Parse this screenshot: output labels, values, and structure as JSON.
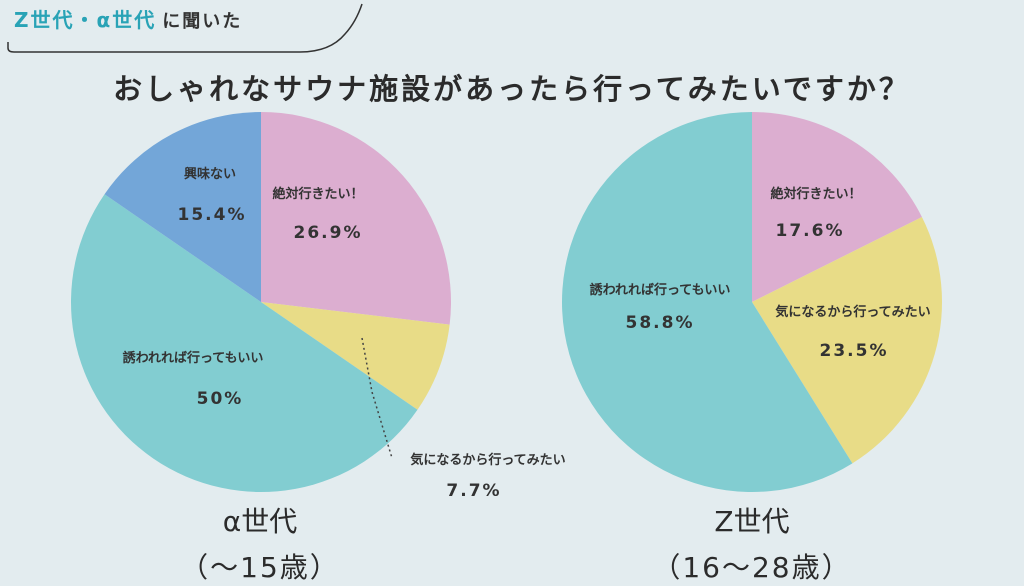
{
  "header": {
    "tag_accent": "Z世代・α世代",
    "tag_plain": "に聞いた",
    "title": "おしゃれなサウナ施設があったら行ってみたいですか？"
  },
  "colors": {
    "pink": "#dcaed0",
    "yellow": "#e8dc87",
    "teal": "#82cdd1",
    "blue": "#73a6d8",
    "accent": "#29a3b6"
  },
  "chart_data": [
    {
      "type": "pie",
      "caption": "α世代",
      "subcaption": "（〜15歳）",
      "slices": [
        {
          "label": "絶対行きたい！",
          "pct_text": "26.9%",
          "value": 26.9,
          "color": "#dcaed0"
        },
        {
          "label": "気になるから行ってみたい",
          "pct_text": "7.7%",
          "value": 7.7,
          "color": "#e8dc87"
        },
        {
          "label": "誘われれば行ってもいい",
          "pct_text": "50%",
          "value": 50,
          "color": "#82cdd1"
        },
        {
          "label": "興味ない",
          "pct_text": "15.4%",
          "value": 15.4,
          "color": "#73a6d8"
        }
      ]
    },
    {
      "type": "pie",
      "caption": "Z世代",
      "subcaption": "（16〜28歳）",
      "slices": [
        {
          "label": "絶対行きたい！",
          "pct_text": "17.6%",
          "value": 17.6,
          "color": "#dcaed0"
        },
        {
          "label": "気になるから行ってみたい",
          "pct_text": "23.5%",
          "value": 23.5,
          "color": "#e8dc87"
        },
        {
          "label": "誘われれば行ってもいい",
          "pct_text": "58.8%",
          "value": 58.8,
          "color": "#82cdd1"
        }
      ]
    }
  ]
}
